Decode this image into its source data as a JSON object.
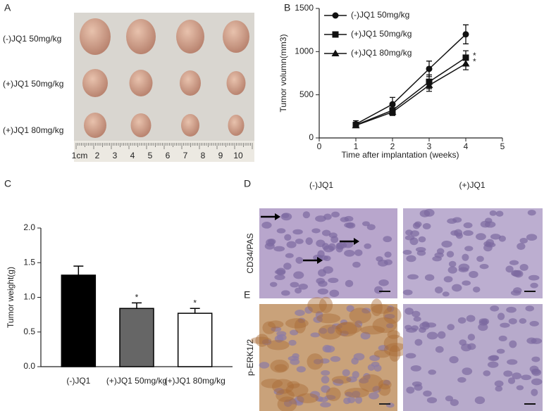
{
  "panel_labels": [
    "A",
    "B",
    "C",
    "D",
    "E"
  ],
  "photo": {
    "rows": [
      "(-)JQ1 50mg/kg",
      "(+)JQ1 50mg/kg",
      "(+)JQ1 80mg/kg"
    ],
    "ruler": [
      "1cm",
      "2",
      "3",
      "4",
      "5",
      "6",
      "7",
      "8",
      "9",
      "10"
    ]
  },
  "histology": {
    "columns": [
      "(-)JQ1",
      "(+)JQ1"
    ],
    "rows": [
      "CD34/PAS",
      "p-ERK1/2"
    ]
  },
  "chart_data": [
    {
      "type": "line",
      "xlabel": "Time after implantation (weeks)",
      "ylabel": "Tumor volumn(mm3)",
      "x": [
        1,
        2,
        3,
        4
      ],
      "xlim": [
        0,
        5
      ],
      "xticks": [
        0,
        1,
        2,
        3,
        4,
        5
      ],
      "ylim": [
        0,
        1500
      ],
      "yticks": [
        0,
        500,
        1000,
        1500
      ],
      "legend": "upper left",
      "series": [
        {
          "name": "(-)JQ1 50mg/kg",
          "color": "#111111",
          "marker": "circle",
          "values": [
            160,
            390,
            800,
            1200
          ],
          "errors": [
            40,
            80,
            90,
            110
          ]
        },
        {
          "name": "(+)JQ1 50mg/kg",
          "color": "#111111",
          "marker": "square",
          "values": [
            150,
            320,
            650,
            930
          ],
          "errors": [
            30,
            50,
            80,
            80
          ],
          "annotation": "*"
        },
        {
          "name": "(+)JQ1 80mg/kg",
          "color": "#111111",
          "marker": "triangle",
          "values": [
            145,
            300,
            610,
            860
          ],
          "errors": [
            25,
            40,
            70,
            70
          ],
          "annotation": "*"
        }
      ]
    },
    {
      "type": "bar",
      "ylabel": "Tumor weight(g)",
      "categories": [
        "(-)JQ1",
        "(+)JQ1 50mg/kg",
        "(+)JQ1 80mg/kg"
      ],
      "values": [
        1.32,
        0.84,
        0.77
      ],
      "errors": [
        0.13,
        0.08,
        0.07
      ],
      "colors": [
        "#000000",
        "#666666",
        "#ffffff"
      ],
      "value_annotations": [
        null,
        "*",
        "*"
      ],
      "ylim": [
        0,
        2.0
      ],
      "yticks": [
        {
          "value": 0,
          "label": "0.0"
        },
        {
          "value": 0.5,
          "label": "0.5"
        },
        {
          "value": 1,
          "label": "1.0"
        },
        {
          "value": 1.5,
          "label": "1.5"
        },
        {
          "value": 2,
          "label": "2.0"
        }
      ]
    }
  ]
}
